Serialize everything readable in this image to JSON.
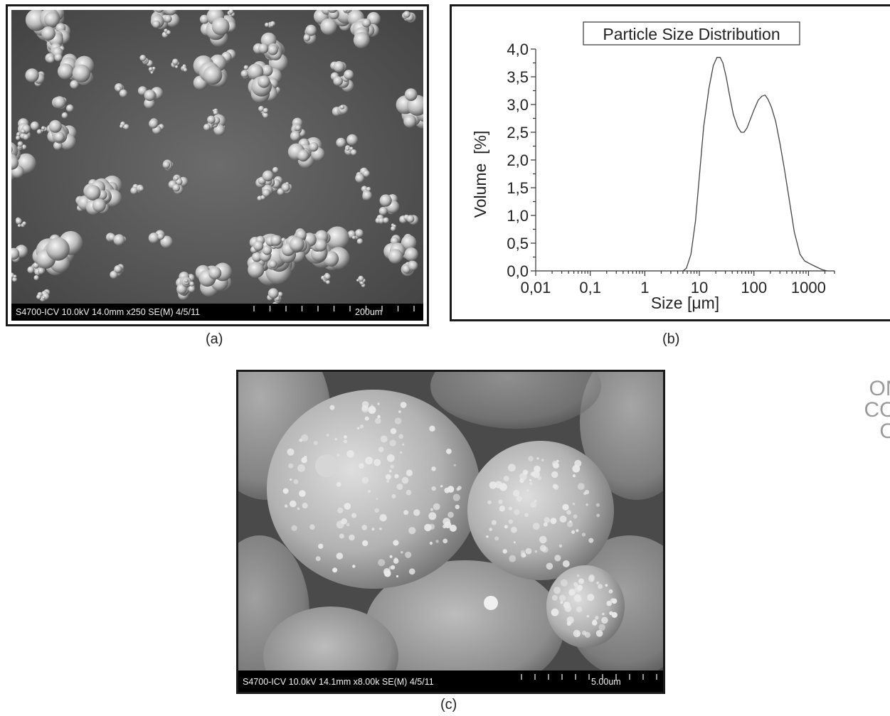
{
  "panel_a": {
    "info": "S4700-ICV 10.0kV 14.0mm x250 SE(M) 4/5/11",
    "scale": "200um",
    "caption": "(a)"
  },
  "panel_b": {
    "caption": "(b)"
  },
  "panel_c": {
    "info": "S4700-ICV 10.0kV 14.1mm x8.00k SE(M) 4/5/11",
    "scale": "5.00um",
    "caption": "(c)"
  },
  "side_text": [
    "ON",
    "CO",
    "O"
  ],
  "chart_data": {
    "type": "line",
    "title": "Particle Size Distribution",
    "xlabel": "Size [μm]",
    "ylabel": "Volume  [%]",
    "xscale": "log",
    "xlim": [
      0.01,
      3000
    ],
    "ylim": [
      0,
      4.0
    ],
    "xticks": [
      "0,01",
      "0,1",
      "1",
      "10",
      "100",
      "1000"
    ],
    "yticks": [
      "0,0",
      "0,5",
      "1,0",
      "1,5",
      "2,0",
      "2,5",
      "3,0",
      "3,5",
      "4,0"
    ],
    "grid": false,
    "series": [
      {
        "color": "#444444",
        "x": [
          5,
          5.8,
          7,
          8.5,
          10,
          12,
          15,
          18,
          21,
          24,
          27,
          31,
          36,
          42,
          50,
          58,
          66,
          75,
          85,
          100,
          120,
          140,
          160,
          180,
          210,
          250,
          300,
          360,
          450,
          550,
          700,
          850,
          1100,
          1400,
          1800,
          2200
        ],
        "y": [
          0.0,
          0.05,
          0.3,
          0.9,
          1.7,
          2.6,
          3.3,
          3.7,
          3.85,
          3.85,
          3.75,
          3.5,
          3.15,
          2.82,
          2.6,
          2.5,
          2.5,
          2.58,
          2.72,
          2.9,
          3.08,
          3.15,
          3.17,
          3.1,
          2.95,
          2.7,
          2.3,
          1.85,
          1.25,
          0.7,
          0.3,
          0.18,
          0.12,
          0.07,
          0.02,
          0.0
        ]
      }
    ]
  }
}
